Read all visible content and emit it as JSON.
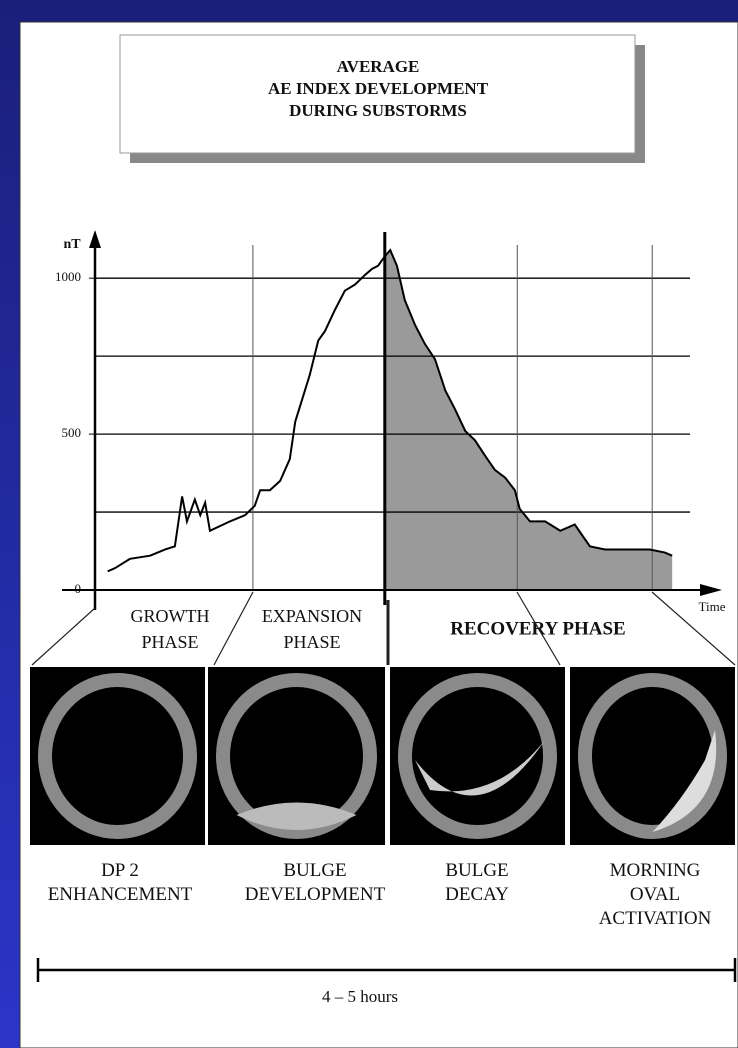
{
  "chart_data": {
    "type": "line",
    "title_lines": [
      "AVERAGE",
      "AE INDEX DEVELOPMENT",
      "DURING SUBSTORMS"
    ],
    "y_label": "nT",
    "x_label": "Time",
    "xlim": [
      0,
      100
    ],
    "ylim": [
      0,
      1100
    ],
    "yticks": [
      0,
      500,
      1000
    ],
    "grid_lines": [
      250,
      500,
      750,
      1000
    ],
    "grid": true,
    "phase_boundaries": [
      26.1,
      47.9,
      69.8,
      92.1
    ],
    "shade_from": 47.9,
    "shade_color": "#9a9a9a",
    "series": [
      {
        "name": "AE",
        "color": "#000000",
        "x": [
          2.1,
          3.3,
          5.8,
          9.1,
          11.6,
          13.2,
          14.4,
          15.2,
          16.5,
          17.4,
          18.2,
          19.0,
          22.3,
          24.8,
          26.4,
          27.3,
          28.9,
          30.6,
          32.2,
          33.1,
          33.9,
          35.5,
          36.9,
          38.0,
          39.7,
          41.3,
          43.0,
          44.6,
          45.8,
          46.8,
          47.9,
          48.8,
          49.9,
          51.2,
          52.9,
          54.5,
          56.2,
          57.9,
          59.5,
          61.2,
          62.8,
          64.5,
          66.1,
          67.8,
          69.4,
          70.2,
          71.9,
          74.4,
          76.9,
          79.3,
          81.8,
          84.3,
          86.8,
          89.3,
          91.7,
          94.2,
          95.4
        ],
        "values": [
          60,
          70,
          100,
          110,
          130,
          140,
          300,
          220,
          290,
          240,
          280,
          190,
          220,
          240,
          270,
          320,
          320,
          350,
          420,
          540,
          590,
          690,
          800,
          830,
          900,
          960,
          980,
          1010,
          1030,
          1040,
          1070,
          1090,
          1040,
          930,
          850,
          790,
          740,
          640,
          580,
          510,
          480,
          430,
          385,
          360,
          320,
          260,
          220,
          220,
          190,
          210,
          140,
          130,
          130,
          130,
          130,
          120,
          110
        ]
      }
    ]
  },
  "phases": [
    "GROWTH PHASE",
    "EXPANSION PHASE",
    "RECOVERY PHASE"
  ],
  "panels": [
    "DP 2 ENHANCEMENT",
    "BULGE DEVELOPMENT",
    "BULGE DECAY",
    "MORNING OVAL ACTIVATION"
  ],
  "duration": "4 – 5 hours"
}
